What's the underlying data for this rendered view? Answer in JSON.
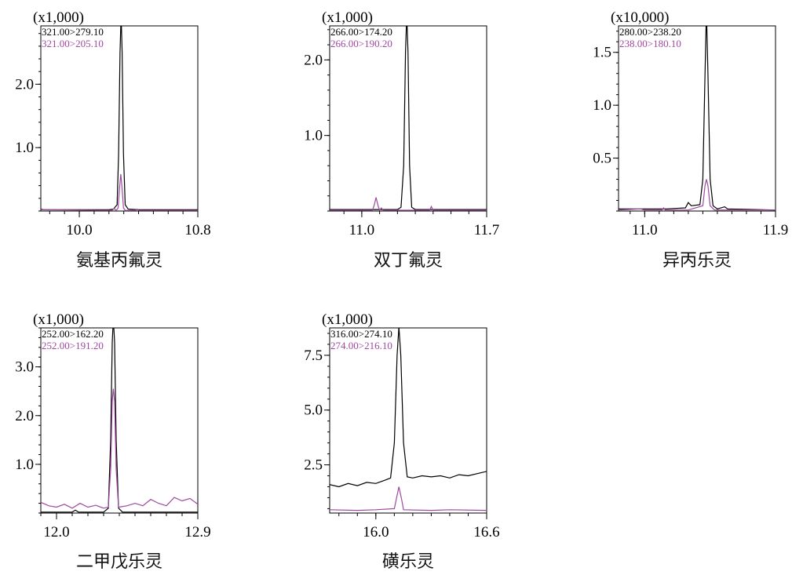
{
  "chart_data": [
    {
      "type": "line",
      "caption": "氨基丙氟灵",
      "multiplier": "(x1,000)",
      "x_ticks": [
        {
          "value": 10.0,
          "label": "10.0"
        },
        {
          "value": 10.8,
          "label": "10.8"
        }
      ],
      "y_ticks": [
        {
          "value": 1.0,
          "label": "1.0"
        },
        {
          "value": 2.0,
          "label": "2.0"
        }
      ],
      "xlim": [
        9.74,
        10.8
      ],
      "ylim": [
        0.0,
        2.92
      ],
      "grid": false,
      "series": [
        {
          "name": "321.00>279.10",
          "color": "#000000",
          "points": [
            [
              9.74,
              0.03
            ],
            [
              9.76,
              0.02
            ],
            [
              10.0,
              0.02
            ],
            [
              10.2,
              0.02
            ],
            [
              10.23,
              0.03
            ],
            [
              10.255,
              0.1
            ],
            [
              10.265,
              0.9
            ],
            [
              10.275,
              2.5
            ],
            [
              10.282,
              3.1
            ],
            [
              10.289,
              2.5
            ],
            [
              10.298,
              0.9
            ],
            [
              10.31,
              0.1
            ],
            [
              10.33,
              0.03
            ],
            [
              10.4,
              0.02
            ],
            [
              10.8,
              0.02
            ]
          ]
        },
        {
          "name": "321.00>205.10",
          "color": "#a048a0",
          "points": [
            [
              9.74,
              0.02
            ],
            [
              10.22,
              0.01
            ],
            [
              10.235,
              0.04
            ],
            [
              10.25,
              0.01
            ],
            [
              10.262,
              0.05
            ],
            [
              10.272,
              0.38
            ],
            [
              10.28,
              0.58
            ],
            [
              10.288,
              0.38
            ],
            [
              10.298,
              0.05
            ],
            [
              10.31,
              0.01
            ],
            [
              10.38,
              0.01
            ],
            [
              10.39,
              0.03
            ],
            [
              10.4,
              0.01
            ],
            [
              10.8,
              0.01
            ]
          ]
        }
      ]
    },
    {
      "type": "line",
      "caption": "双丁氟灵",
      "multiplier": "(x1,000)",
      "x_ticks": [
        {
          "value": 11.0,
          "label": "11.0"
        },
        {
          "value": 11.7,
          "label": "11.7"
        }
      ],
      "y_ticks": [
        {
          "value": 1.0,
          "label": "1.0"
        },
        {
          "value": 2.0,
          "label": "2.0"
        }
      ],
      "xlim": [
        10.82,
        11.7
      ],
      "ylim": [
        0.0,
        2.45
      ],
      "grid": false,
      "series": [
        {
          "name": "266.00>174.20",
          "color": "#000000",
          "points": [
            [
              10.82,
              0.02
            ],
            [
              11.2,
              0.02
            ],
            [
              11.22,
              0.05
            ],
            [
              11.235,
              0.6
            ],
            [
              11.245,
              2.1
            ],
            [
              11.252,
              2.6
            ],
            [
              11.259,
              2.1
            ],
            [
              11.268,
              0.6
            ],
            [
              11.28,
              0.05
            ],
            [
              11.3,
              0.02
            ],
            [
              11.7,
              0.02
            ]
          ]
        },
        {
          "name": "266.00>190.20",
          "color": "#a048a0",
          "points": [
            [
              10.82,
              0.01
            ],
            [
              11.06,
              0.01
            ],
            [
              11.07,
              0.08
            ],
            [
              11.08,
              0.18
            ],
            [
              11.09,
              0.08
            ],
            [
              11.1,
              0.01
            ],
            [
              11.11,
              0.04
            ],
            [
              11.12,
              0.01
            ],
            [
              11.3,
              0.01
            ],
            [
              11.38,
              0.01
            ],
            [
              11.39,
              0.06
            ],
            [
              11.4,
              0.01
            ],
            [
              11.7,
              0.01
            ]
          ]
        }
      ]
    },
    {
      "type": "line",
      "caption": "异丙乐灵",
      "multiplier": "(x10,000)",
      "x_ticks": [
        {
          "value": 11.0,
          "label": "11.0"
        },
        {
          "value": 11.9,
          "label": "11.9"
        }
      ],
      "y_ticks": [
        {
          "value": 0.5,
          "label": "0.5"
        },
        {
          "value": 1.0,
          "label": "1.0"
        },
        {
          "value": 1.5,
          "label": "1.5"
        }
      ],
      "xlim": [
        10.82,
        11.9
      ],
      "ylim": [
        0.0,
        1.75
      ],
      "grid": false,
      "series": [
        {
          "name": "280.00>238.20",
          "color": "#000000",
          "points": [
            [
              10.82,
              0.02
            ],
            [
              11.15,
              0.02
            ],
            [
              11.28,
              0.03
            ],
            [
              11.3,
              0.08
            ],
            [
              11.32,
              0.05
            ],
            [
              11.38,
              0.06
            ],
            [
              11.4,
              0.3
            ],
            [
              11.415,
              1.3
            ],
            [
              11.425,
              1.9
            ],
            [
              11.435,
              1.3
            ],
            [
              11.45,
              0.3
            ],
            [
              11.47,
              0.05
            ],
            [
              11.5,
              0.02
            ],
            [
              11.55,
              0.04
            ],
            [
              11.57,
              0.02
            ],
            [
              11.9,
              0.01
            ]
          ]
        },
        {
          "name": "238.00>180.10",
          "color": "#a048a0",
          "points": [
            [
              10.82,
              0.01
            ],
            [
              10.97,
              0.02
            ],
            [
              11.0,
              0.01
            ],
            [
              11.12,
              0.01
            ],
            [
              11.13,
              0.03
            ],
            [
              11.14,
              0.01
            ],
            [
              11.3,
              0.01
            ],
            [
              11.4,
              0.05
            ],
            [
              11.415,
              0.24
            ],
            [
              11.425,
              0.3
            ],
            [
              11.435,
              0.24
            ],
            [
              11.45,
              0.05
            ],
            [
              11.48,
              0.01
            ],
            [
              11.9,
              0.01
            ]
          ]
        }
      ]
    },
    {
      "type": "line",
      "caption": "二甲戊乐灵",
      "multiplier": "(x1,000)",
      "x_ticks": [
        {
          "value": 12.0,
          "label": "12.0"
        },
        {
          "value": 12.9,
          "label": "12.9"
        }
      ],
      "y_ticks": [
        {
          "value": 1.0,
          "label": "1.0"
        },
        {
          "value": 2.0,
          "label": "2.0"
        },
        {
          "value": 3.0,
          "label": "3.0"
        }
      ],
      "xlim": [
        11.9,
        12.9
      ],
      "ylim": [
        0.0,
        3.8
      ],
      "grid": false,
      "series": [
        {
          "name": "252.00>162.20",
          "color": "#000000",
          "points": [
            [
              11.9,
              0.02
            ],
            [
              12.1,
              0.02
            ],
            [
              12.12,
              0.06
            ],
            [
              12.14,
              0.02
            ],
            [
              12.3,
              0.02
            ],
            [
              12.33,
              0.1
            ],
            [
              12.345,
              1.5
            ],
            [
              12.355,
              3.5
            ],
            [
              12.362,
              4.0
            ],
            [
              12.37,
              3.5
            ],
            [
              12.38,
              1.5
            ],
            [
              12.395,
              0.1
            ],
            [
              12.42,
              0.02
            ],
            [
              12.9,
              0.02
            ]
          ]
        },
        {
          "name": "252.00>191.20",
          "color": "#a048a0",
          "points": [
            [
              11.9,
              0.22
            ],
            [
              11.95,
              0.15
            ],
            [
              12.0,
              0.12
            ],
            [
              12.05,
              0.18
            ],
            [
              12.1,
              0.1
            ],
            [
              12.15,
              0.2
            ],
            [
              12.2,
              0.12
            ],
            [
              12.25,
              0.16
            ],
            [
              12.3,
              0.1
            ],
            [
              12.33,
              0.12
            ],
            [
              12.345,
              0.9
            ],
            [
              12.355,
              2.3
            ],
            [
              12.362,
              2.55
            ],
            [
              12.37,
              2.3
            ],
            [
              12.38,
              0.9
            ],
            [
              12.395,
              0.12
            ],
            [
              12.45,
              0.15
            ],
            [
              12.5,
              0.2
            ],
            [
              12.55,
              0.15
            ],
            [
              12.6,
              0.28
            ],
            [
              12.65,
              0.2
            ],
            [
              12.7,
              0.15
            ],
            [
              12.75,
              0.32
            ],
            [
              12.8,
              0.25
            ],
            [
              12.85,
              0.3
            ],
            [
              12.9,
              0.18
            ]
          ]
        }
      ]
    },
    {
      "type": "line",
      "caption": "磺乐灵",
      "multiplier": "(x1,000)",
      "x_ticks": [
        {
          "value": 16.0,
          "label": "16.0"
        },
        {
          "value": 16.6,
          "label": "16.6"
        }
      ],
      "y_ticks": [
        {
          "value": 2.5,
          "label": "2.5"
        },
        {
          "value": 5.0,
          "label": "5.0"
        },
        {
          "value": 7.5,
          "label": "7.5"
        }
      ],
      "xlim": [
        15.75,
        16.6
      ],
      "ylim": [
        0.3,
        8.75
      ],
      "grid": false,
      "series": [
        {
          "name": "316.00>274.10",
          "color": "#000000",
          "points": [
            [
              15.75,
              1.6
            ],
            [
              15.8,
              1.5
            ],
            [
              15.85,
              1.65
            ],
            [
              15.9,
              1.55
            ],
            [
              15.95,
              1.7
            ],
            [
              16.0,
              1.65
            ],
            [
              16.05,
              1.8
            ],
            [
              16.08,
              1.9
            ],
            [
              16.1,
              3.5
            ],
            [
              16.115,
              7.5
            ],
            [
              16.125,
              8.8
            ],
            [
              16.135,
              7.5
            ],
            [
              16.15,
              3.5
            ],
            [
              16.17,
              1.95
            ],
            [
              16.2,
              1.9
            ],
            [
              16.25,
              2.0
            ],
            [
              16.3,
              1.95
            ],
            [
              16.35,
              2.0
            ],
            [
              16.4,
              1.9
            ],
            [
              16.45,
              2.05
            ],
            [
              16.5,
              2.0
            ],
            [
              16.55,
              2.1
            ],
            [
              16.6,
              2.2
            ]
          ]
        },
        {
          "name": "274.00>216.10",
          "color": "#a048a0",
          "points": [
            [
              15.75,
              0.45
            ],
            [
              15.9,
              0.42
            ],
            [
              16.0,
              0.45
            ],
            [
              16.1,
              0.5
            ],
            [
              16.11,
              0.9
            ],
            [
              16.125,
              1.5
            ],
            [
              16.14,
              0.9
            ],
            [
              16.15,
              0.45
            ],
            [
              16.3,
              0.42
            ],
            [
              16.4,
              0.45
            ],
            [
              16.6,
              0.42
            ]
          ]
        }
      ]
    }
  ]
}
